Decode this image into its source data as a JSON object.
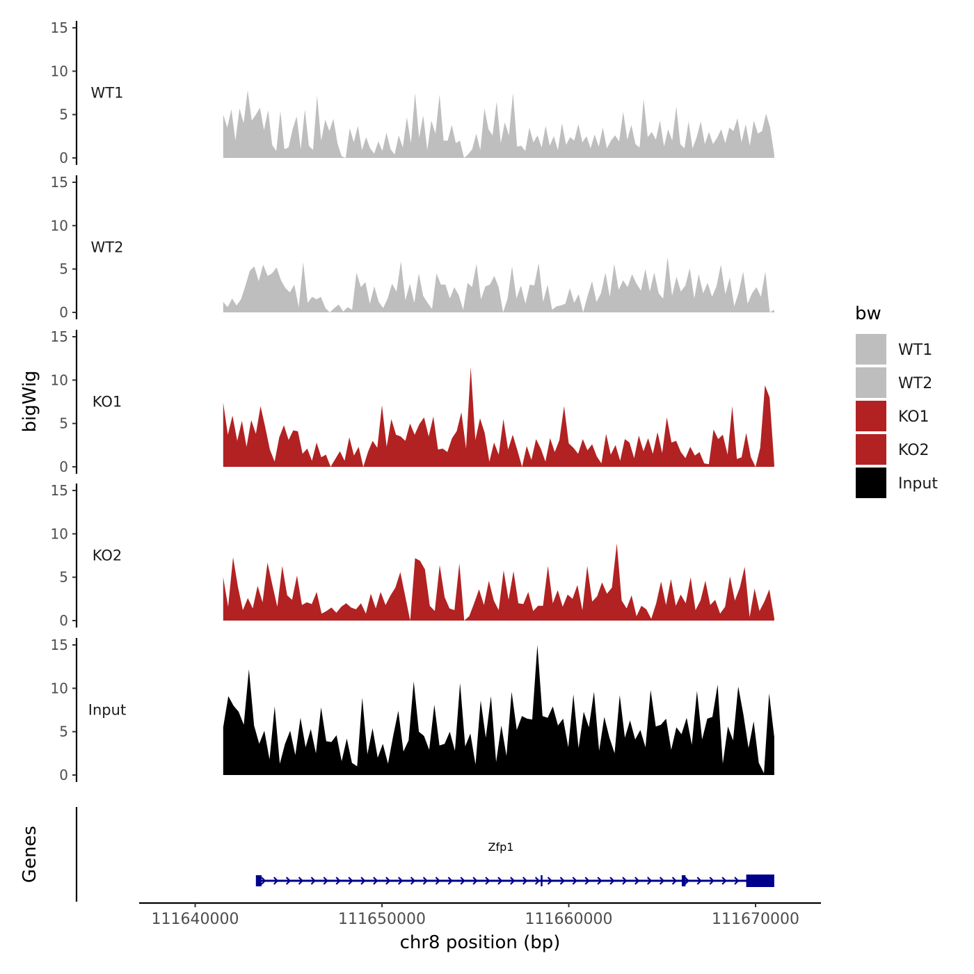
{
  "chart_data": {
    "type": "area",
    "ylabel": "bigWig",
    "xlabel": "chr8 position (bp)",
    "xlim": [
      111637000,
      111673500
    ],
    "ylim": [
      0,
      15
    ],
    "x_ticks": [
      111640000,
      111650000,
      111660000,
      111670000
    ],
    "x_tick_labels": [
      "111640000",
      "111650000",
      "111660000",
      "111670000"
    ],
    "y_ticks": [
      0,
      5,
      10,
      15
    ],
    "y_tick_labels": [
      "0",
      "5",
      "10",
      "15"
    ],
    "data_range": [
      111641500,
      111671000
    ],
    "legend": {
      "title": "bw",
      "position": "right",
      "entries": [
        {
          "label": "WT1",
          "color": "#bebebe"
        },
        {
          "label": "WT2",
          "color": "#bebebe"
        },
        {
          "label": "KO1",
          "color": "#b22222"
        },
        {
          "label": "KO2",
          "color": "#b22222"
        },
        {
          "label": "Input",
          "color": "#000000"
        }
      ]
    },
    "series": [
      {
        "name": "WT1",
        "color": "#bebebe",
        "values": [
          5.0,
          3.5,
          5.6,
          2.0,
          5.7,
          4.0,
          7.8,
          4.3,
          5.0,
          5.8,
          3.2,
          5.5,
          1.5,
          0.8,
          5.4,
          1.0,
          1.2,
          3.3,
          4.8,
          1.0,
          5.6,
          1.4,
          0.9,
          7.2,
          2.0,
          4.4,
          3.1,
          4.5,
          1.7,
          0.2,
          0.0,
          3.4,
          1.8,
          3.7,
          0.9,
          2.4,
          1.1,
          0.5,
          1.9,
          0.8,
          2.9,
          1.0,
          0.4,
          2.6,
          1.2,
          4.7,
          1.7,
          7.5,
          2.3,
          4.9,
          0.9,
          4.3,
          2.8,
          7.3,
          2.0,
          2.0,
          3.8,
          1.7,
          2.0,
          0.0,
          0.4,
          1.0,
          2.8,
          0.9,
          5.7,
          3.3,
          2.6,
          6.5,
          1.7,
          4.1,
          2.6,
          7.5,
          1.3,
          1.4,
          0.8,
          3.5,
          1.8,
          2.6,
          1.2,
          3.7,
          1.4,
          2.5,
          0.9,
          4.0,
          1.5,
          2.4,
          2.0,
          3.9,
          1.8,
          2.5,
          1.1,
          2.7,
          1.3,
          3.5,
          1.1,
          2.0,
          2.6,
          1.9,
          5.3,
          2.1,
          3.8,
          1.6,
          1.2,
          6.8,
          2.4,
          3.0,
          2.1,
          4.3,
          1.3,
          3.3,
          2.0,
          5.9,
          1.6,
          1.1,
          4.2,
          1.1,
          2.4,
          4.2,
          1.6,
          3.0,
          1.6,
          2.3,
          3.3,
          1.7,
          3.5,
          3.1,
          4.6,
          1.8,
          3.9,
          1.4,
          4.3,
          2.8,
          3.1,
          5.1,
          3.5,
          0.4
        ]
      },
      {
        "name": "WT2",
        "color": "#bebebe",
        "values": [
          1.2,
          0.6,
          1.6,
          0.8,
          1.5,
          3.1,
          4.8,
          5.3,
          3.6,
          5.5,
          4.2,
          4.5,
          5.2,
          3.7,
          2.8,
          2.3,
          3.2,
          0.6,
          5.8,
          1.1,
          1.8,
          1.5,
          1.8,
          0.5,
          0.0,
          0.5,
          0.9,
          0.1,
          0.6,
          0.3,
          4.6,
          2.9,
          3.5,
          1.0,
          3.0,
          1.2,
          0.5,
          1.6,
          3.3,
          2.4,
          5.9,
          1.4,
          3.3,
          1.1,
          4.5,
          1.9,
          1.1,
          0.4,
          4.5,
          3.2,
          3.2,
          1.6,
          2.9,
          2.0,
          0.3,
          3.4,
          2.9,
          5.6,
          1.5,
          3.0,
          3.2,
          4.2,
          2.9,
          0.0,
          1.6,
          5.3,
          1.6,
          3.1,
          1.0,
          3.2,
          3.1,
          5.7,
          1.2,
          3.2,
          0.3,
          0.7,
          0.8,
          1.0,
          2.8,
          1.1,
          2.1,
          0.0,
          1.9,
          3.6,
          1.2,
          2.2,
          4.6,
          1.8,
          5.6,
          2.6,
          3.7,
          2.9,
          4.4,
          3.3,
          2.5,
          5.0,
          2.4,
          4.6,
          2.2,
          1.6,
          6.4,
          1.9,
          4.1,
          2.4,
          3.1,
          5.1,
          1.6,
          4.4,
          2.2,
          3.4,
          1.8,
          3.0,
          5.5,
          2.1,
          4.0,
          0.7,
          2.3,
          4.7,
          1.0,
          2.2,
          2.9,
          1.8,
          4.7,
          0.0,
          0.3
        ]
      },
      {
        "name": "KO1",
        "color": "#b22222",
        "values": [
          7.4,
          3.7,
          5.9,
          3.0,
          5.3,
          2.3,
          5.4,
          3.8,
          7.0,
          4.6,
          2.0,
          0.6,
          3.4,
          4.8,
          3.1,
          4.2,
          4.1,
          1.5,
          2.1,
          0.7,
          2.8,
          1.1,
          1.4,
          0.0,
          0.9,
          1.8,
          0.7,
          3.4,
          1.3,
          2.3,
          0.0,
          1.7,
          3.0,
          2.2,
          7.1,
          2.3,
          5.5,
          3.7,
          3.5,
          3.0,
          5.0,
          3.7,
          4.9,
          5.7,
          3.5,
          5.8,
          2.0,
          2.1,
          1.7,
          3.3,
          4.1,
          6.3,
          2.1,
          11.5,
          3.1,
          5.6,
          3.9,
          0.6,
          2.8,
          1.4,
          5.5,
          2.0,
          3.7,
          1.9,
          0.0,
          2.4,
          0.8,
          3.2,
          2.1,
          0.6,
          3.3,
          1.7,
          3.1,
          7.0,
          2.7,
          2.2,
          1.5,
          3.2,
          1.9,
          2.6,
          1.2,
          0.4,
          3.8,
          1.4,
          2.5,
          0.7,
          3.2,
          2.8,
          1.0,
          3.6,
          1.8,
          3.3,
          1.5,
          4.0,
          1.6,
          5.7,
          2.8,
          3.0,
          1.7,
          1.0,
          2.3,
          1.3,
          1.7,
          0.4,
          0.3,
          4.3,
          3.2,
          3.7,
          1.4,
          7.0,
          0.9,
          1.1,
          3.9,
          1.1,
          0.0,
          2.2,
          9.4,
          8.0,
          0.3
        ]
      },
      {
        "name": "KO2",
        "color": "#b22222",
        "values": [
          5.0,
          1.6,
          7.3,
          3.9,
          1.2,
          2.6,
          1.4,
          4.0,
          2.1,
          6.7,
          4.1,
          1.6,
          6.3,
          2.9,
          2.4,
          5.2,
          1.8,
          2.1,
          1.9,
          3.3,
          0.8,
          1.1,
          1.5,
          0.9,
          1.6,
          2.0,
          1.5,
          1.3,
          2.0,
          0.8,
          3.1,
          1.4,
          3.3,
          1.8,
          2.9,
          3.8,
          5.6,
          2.8,
          0.0,
          7.2,
          6.9,
          5.9,
          1.7,
          1.1,
          6.4,
          2.7,
          1.4,
          1.2,
          6.6,
          0.0,
          0.5,
          2.0,
          3.6,
          1.8,
          4.6,
          2.3,
          1.2,
          5.8,
          2.4,
          5.7,
          2.0,
          1.9,
          3.3,
          1.1,
          1.7,
          1.7,
          6.3,
          2.0,
          3.5,
          1.6,
          3.0,
          2.5,
          4.1,
          1.2,
          6.3,
          2.2,
          2.8,
          4.4,
          3.1,
          3.8,
          8.9,
          2.3,
          1.4,
          2.9,
          0.5,
          1.7,
          1.3,
          0.2,
          2.0,
          4.5,
          1.8,
          4.8,
          1.7,
          3.0,
          2.0,
          5.0,
          1.2,
          2.3,
          4.6,
          1.8,
          2.4,
          0.8,
          1.6,
          5.1,
          2.3,
          3.8,
          6.2,
          0.4,
          3.7,
          1.1,
          2.2,
          3.6,
          0.3
        ]
      },
      {
        "name": "Input",
        "color": "#000000",
        "values": [
          5.5,
          9.1,
          8.0,
          7.3,
          5.8,
          12.2,
          5.7,
          3.6,
          5.1,
          1.8,
          7.9,
          1.3,
          3.6,
          5.1,
          2.3,
          6.6,
          3.2,
          5.3,
          2.5,
          7.8,
          3.9,
          3.8,
          4.6,
          1.6,
          4.2,
          1.4,
          1.0,
          8.9,
          2.4,
          5.4,
          2.0,
          3.6,
          1.3,
          4.5,
          7.4,
          2.7,
          4.0,
          10.8,
          5.0,
          4.5,
          2.9,
          8.1,
          3.4,
          3.6,
          5.0,
          2.8,
          10.6,
          3.3,
          4.8,
          1.2,
          8.6,
          4.3,
          9.1,
          1.5,
          5.7,
          2.2,
          9.6,
          5.2,
          6.8,
          6.5,
          6.4,
          15.0,
          6.8,
          6.6,
          7.9,
          5.7,
          6.5,
          3.2,
          9.3,
          3.1,
          7.3,
          5.5,
          9.6,
          2.8,
          6.7,
          4.3,
          2.5,
          9.2,
          4.3,
          6.3,
          4.1,
          5.2,
          3.2,
          9.8,
          5.6,
          5.8,
          6.5,
          2.9,
          5.5,
          4.7,
          6.6,
          3.5,
          9.7,
          4.1,
          6.5,
          6.7,
          10.4,
          1.3,
          5.6,
          4.0,
          10.2,
          7.0,
          3.1,
          6.2,
          1.4,
          0.2,
          9.4,
          4.4
        ]
      }
    ],
    "gene_track": {
      "ylabel": "Genes",
      "gene_name": "Zfp1",
      "gene_color": "#00008b",
      "strand": "+",
      "start": 111643400,
      "end": 111671000,
      "exons": [
        [
          111643250,
          111643550
        ],
        [
          111658500,
          111658580
        ],
        [
          111666050,
          111666250
        ],
        [
          111669500,
          111671000
        ]
      ]
    }
  }
}
